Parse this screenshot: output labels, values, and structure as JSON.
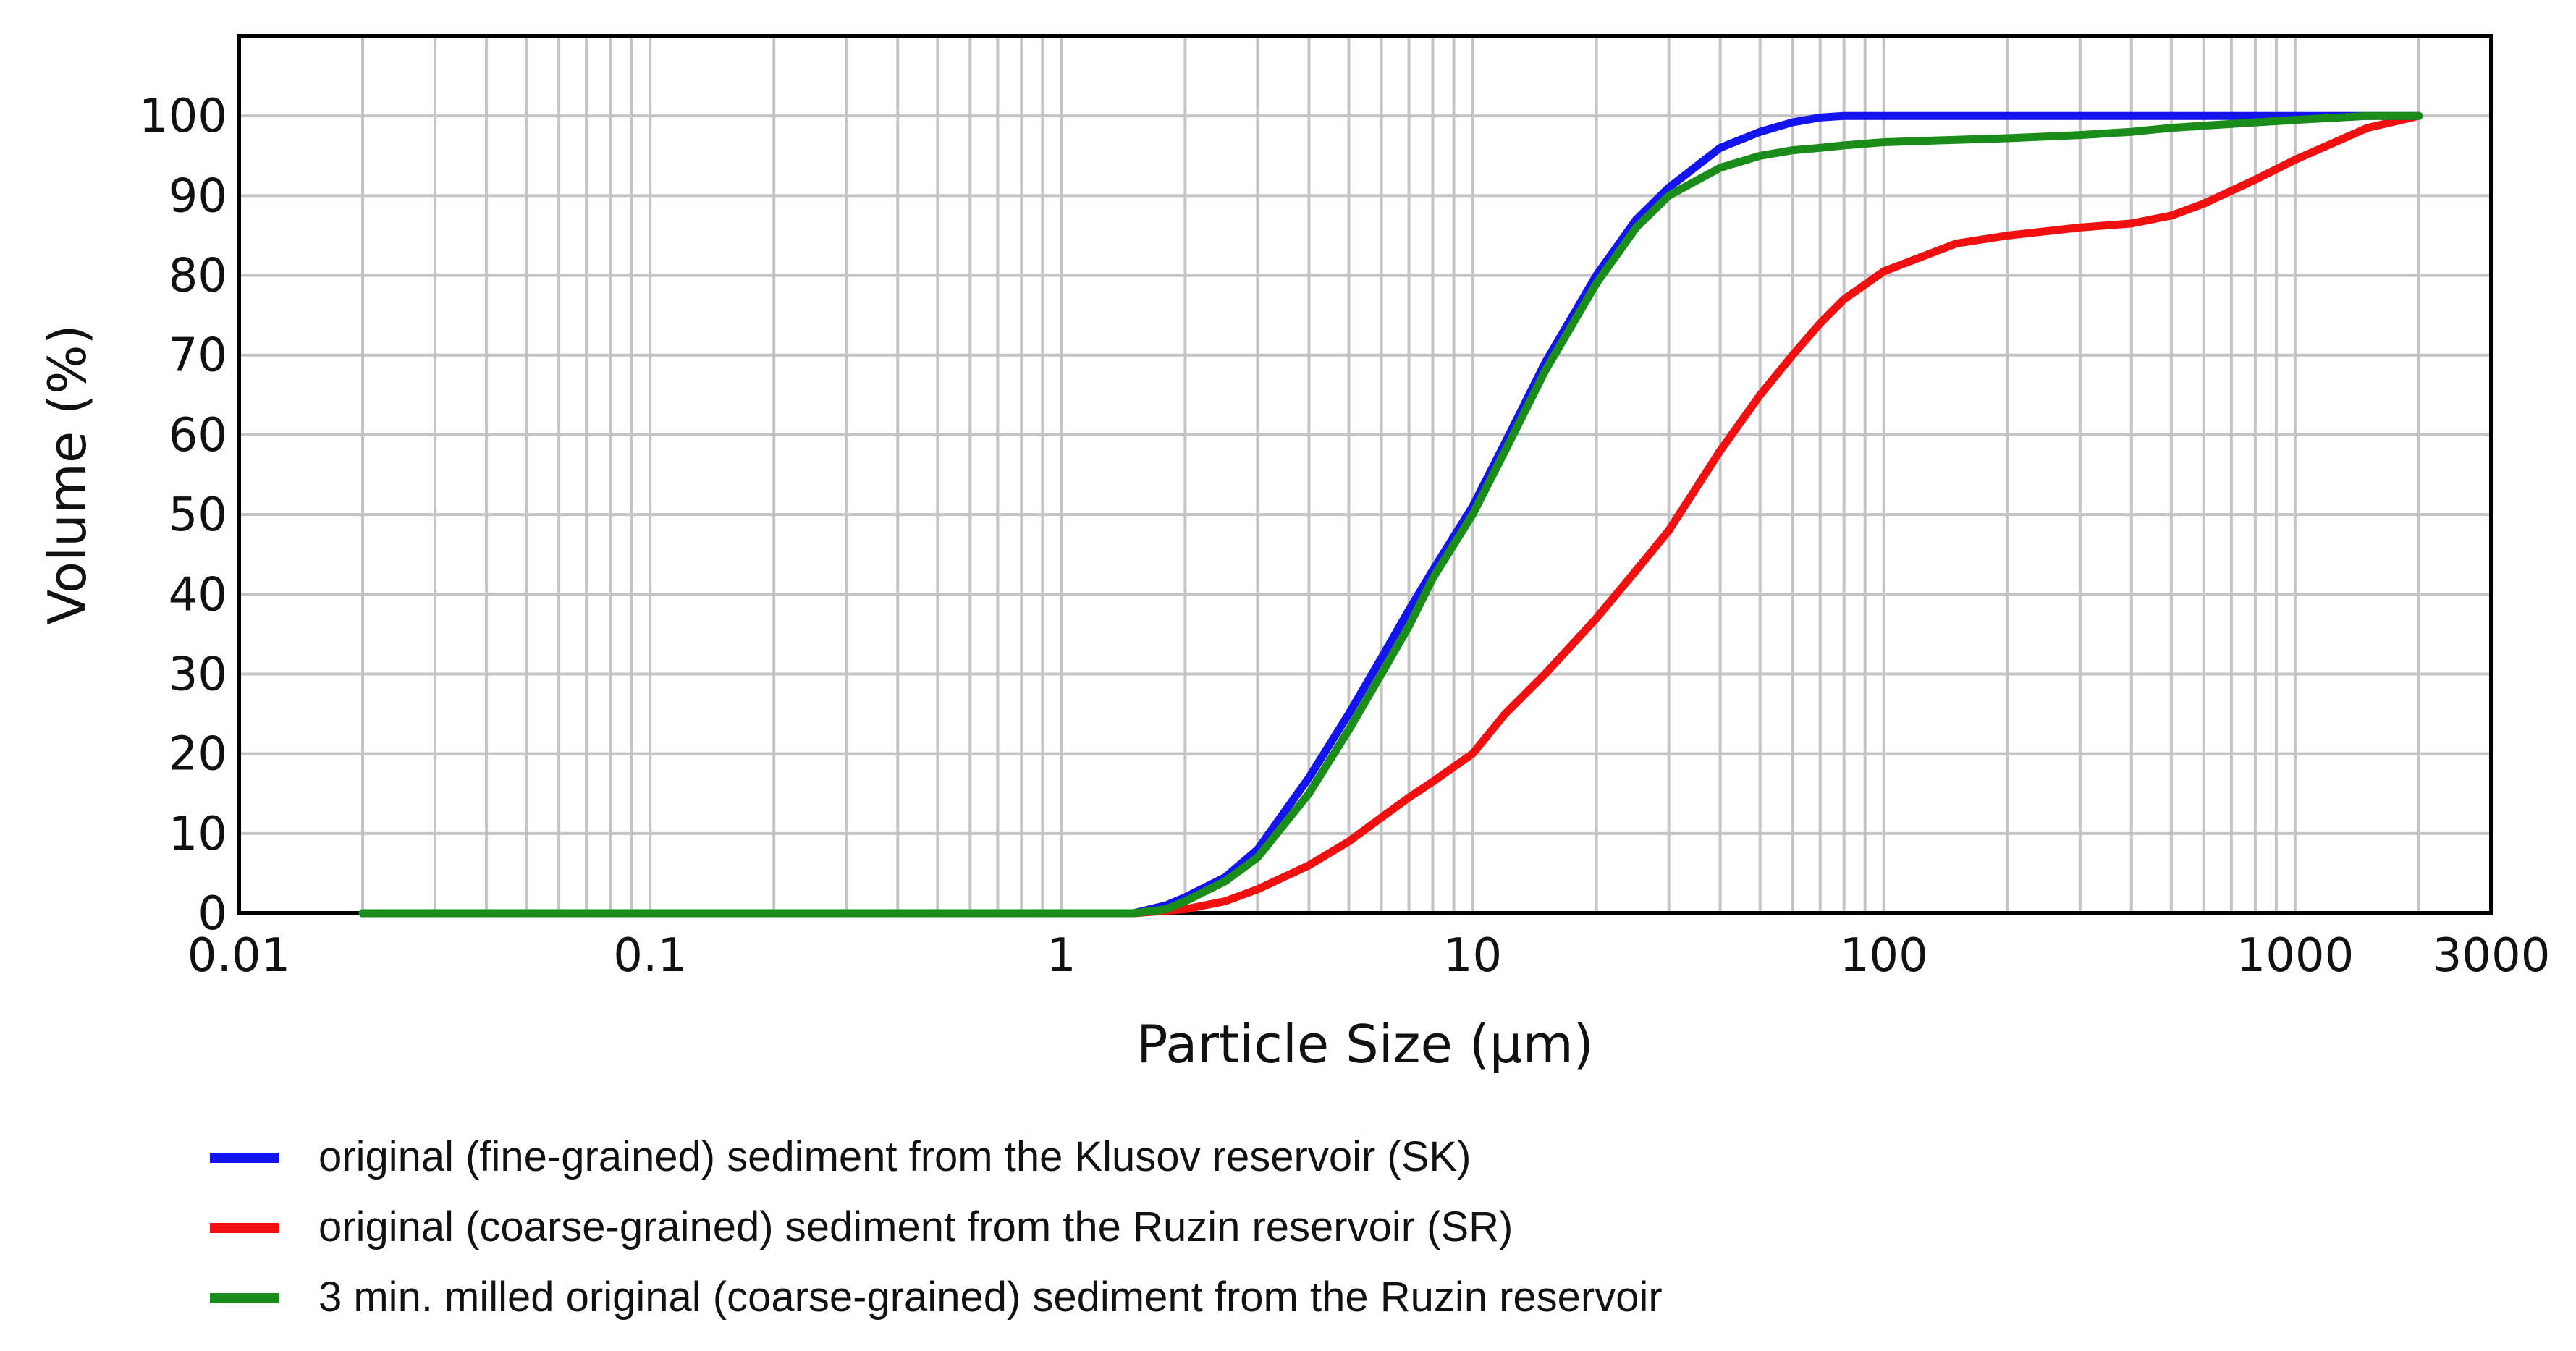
{
  "chart_data": {
    "type": "line",
    "x_scale": "log",
    "xlabel": "Particle Size (µm)",
    "ylabel": "Volume (%)",
    "xlim": [
      0.01,
      3000
    ],
    "ylim": [
      0,
      110
    ],
    "x_ticks": [
      {
        "value": 0.01,
        "label": "0.01"
      },
      {
        "value": 0.1,
        "label": "0.1"
      },
      {
        "value": 1,
        "label": "1"
      },
      {
        "value": 10,
        "label": "10"
      },
      {
        "value": 100,
        "label": "100"
      },
      {
        "value": 1000,
        "label": "1000"
      },
      {
        "value": 3000,
        "label": "3000"
      }
    ],
    "y_ticks": [
      {
        "value": 0,
        "label": "0"
      },
      {
        "value": 10,
        "label": "10"
      },
      {
        "value": 20,
        "label": "20"
      },
      {
        "value": 30,
        "label": "30"
      },
      {
        "value": 40,
        "label": "40"
      },
      {
        "value": 50,
        "label": "50"
      },
      {
        "value": 60,
        "label": "60"
      },
      {
        "value": 70,
        "label": "70"
      },
      {
        "value": 80,
        "label": "80"
      },
      {
        "value": 90,
        "label": "90"
      },
      {
        "value": 100,
        "label": "100"
      }
    ],
    "grid": true,
    "legend_position": "bottom",
    "series": [
      {
        "name": "original (fine-grained) sediment from the Klusov reservoir (SK)",
        "color": "#1414f0",
        "x": [
          0.02,
          1.5,
          1.8,
          2,
          2.5,
          3,
          4,
          5,
          6,
          7,
          8,
          10,
          12,
          15,
          20,
          25,
          30,
          40,
          50,
          60,
          70,
          80,
          100,
          200,
          500,
          1000,
          2000
        ],
        "y": [
          0,
          0,
          1,
          2,
          4.5,
          8,
          17,
          25,
          32,
          38,
          43,
          51,
          59,
          69,
          80,
          87,
          91,
          96,
          98,
          99.2,
          99.8,
          100,
          100,
          100,
          100,
          100,
          100
        ]
      },
      {
        "name": "original (coarse-grained) sediment from the Ruzin reservoir (SR)",
        "color": "#f01010",
        "x": [
          0.02,
          1.5,
          2,
          2.5,
          3,
          4,
          5,
          6,
          7,
          8,
          10,
          12,
          15,
          20,
          25,
          30,
          40,
          50,
          60,
          70,
          80,
          100,
          150,
          200,
          300,
          400,
          500,
          600,
          800,
          1000,
          1500,
          2000
        ],
        "y": [
          0,
          0,
          0.5,
          1.5,
          3,
          6,
          9,
          12,
          14.5,
          16.5,
          20,
          25,
          30,
          37,
          43,
          48,
          58,
          65,
          70,
          74,
          77,
          80.5,
          84,
          85,
          86,
          86.5,
          87.5,
          89,
          92,
          94.5,
          98.5,
          100
        ]
      },
      {
        "name": "3 min. milled original (coarse-grained) sediment from the Ruzin reservoir",
        "color": "#1a8c1a",
        "x": [
          0.02,
          1.5,
          1.8,
          2,
          2.5,
          3,
          4,
          5,
          6,
          7,
          8,
          10,
          12,
          15,
          20,
          25,
          30,
          40,
          50,
          60,
          70,
          80,
          100,
          150,
          200,
          300,
          400,
          500,
          700,
          1000,
          1500,
          2000
        ],
        "y": [
          0,
          0,
          0.5,
          1.5,
          4,
          7,
          15,
          23,
          30,
          36,
          42,
          50,
          58,
          68,
          79,
          86,
          90,
          93.5,
          95,
          95.7,
          96,
          96.3,
          96.7,
          97,
          97.2,
          97.6,
          98,
          98.5,
          99,
          99.5,
          100,
          100
        ]
      }
    ]
  }
}
